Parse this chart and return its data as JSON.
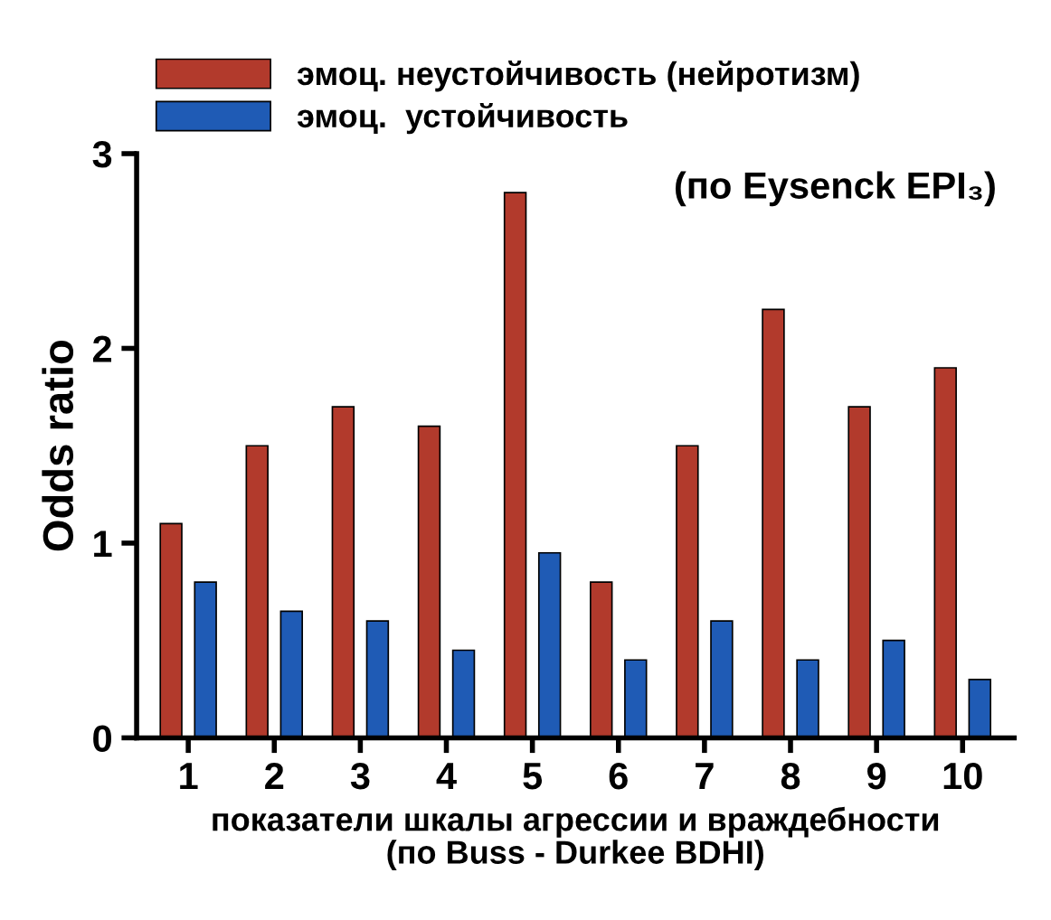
{
  "chart_data": {
    "type": "bar",
    "categories": [
      "1",
      "2",
      "3",
      "4",
      "5",
      "6",
      "7",
      "8",
      "9",
      "10"
    ],
    "series": [
      {
        "name": "эмоц. неустойчивость (нейротизм)",
        "color": "#b23a2c",
        "values": [
          1.1,
          1.5,
          1.7,
          1.6,
          2.8,
          0.8,
          1.5,
          2.2,
          1.7,
          1.9
        ]
      },
      {
        "name": "эмоц.  устойчивость",
        "color": "#1f5bb5",
        "values": [
          0.8,
          0.65,
          0.6,
          0.45,
          0.95,
          0.4,
          0.6,
          0.4,
          0.5,
          0.3
        ]
      }
    ],
    "ylabel": "Odds ratio",
    "xlabel": "показатели шкалы агрессии и враждебности\n(по Buss - Durkee BDHI)",
    "annotations": [
      "(по Eysenck EPI₃)"
    ],
    "ylim": [
      0,
      3
    ],
    "yticks": [
      0,
      1,
      2,
      3
    ],
    "grid": false,
    "legend": "top"
  }
}
